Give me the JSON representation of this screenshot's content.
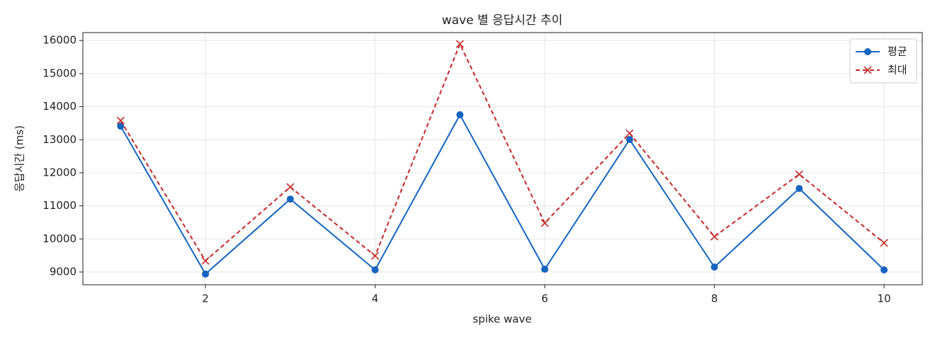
{
  "chart_data": {
    "type": "line",
    "title": "wave 별 응답시간 추이",
    "x_label": "spike wave",
    "y_label": "응답시간 (ms)",
    "x": [
      1,
      2,
      3,
      4,
      5,
      6,
      7,
      8,
      9,
      10
    ],
    "series": [
      {
        "name": "평균",
        "color": "#1565c0",
        "line_style": "solid",
        "marker": "circle",
        "values": [
          13410,
          8940,
          11205,
          9065,
          13755,
          9085,
          13005,
          9150,
          11525,
          9065
        ]
      },
      {
        "name": "최대",
        "color": "#c62828",
        "line_style": "dashed",
        "marker": "x",
        "values": [
          13580,
          9340,
          11570,
          9490,
          15895,
          10480,
          13195,
          10070,
          11955,
          9880
        ]
      }
    ],
    "xlim": [
      0.555,
      10.45
    ],
    "xticks": [
      2,
      4,
      6,
      8,
      10
    ],
    "ylim": [
      8615,
      16240
    ],
    "yticks": [
      9000,
      10000,
      11000,
      12000,
      13000,
      14000,
      15000,
      16000
    ],
    "grid": true,
    "legend": "upper right"
  }
}
